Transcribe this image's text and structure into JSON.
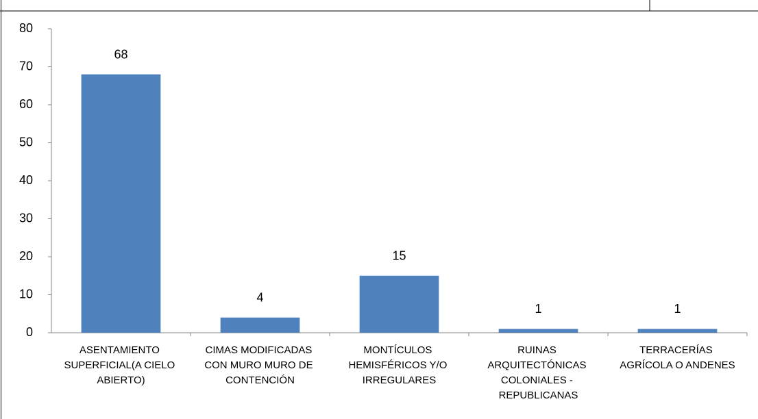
{
  "chart_data": {
    "type": "bar",
    "categories": [
      "ASENTAMIENTO SUPERFICIAL(A CIELO ABIERTO)",
      "CIMAS MODIFICADAS CON MURO MURO DE CONTENCIÓN",
      "MONTÍCULOS HEMISFÉRICOS Y/O IRREGULARES",
      "RUINAS ARQUITECTÓNICAS COLONIALES - REPUBLICANAS",
      "TERRACERÍAS AGRÍCOLA O ANDENES"
    ],
    "values": [
      68,
      4,
      15,
      1,
      1
    ],
    "color": "#4f81bd",
    "ylim": [
      0,
      80
    ],
    "yticks": [
      0,
      10,
      20,
      30,
      40,
      50,
      60,
      70,
      80
    ],
    "grid": false
  }
}
